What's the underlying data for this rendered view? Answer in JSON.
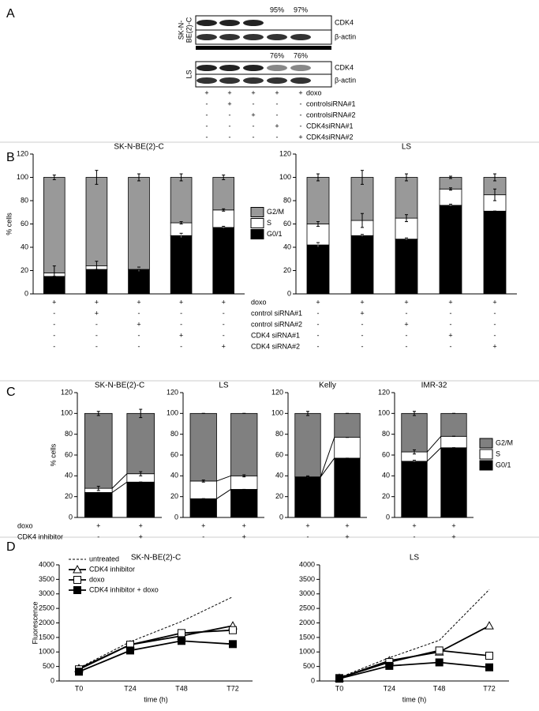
{
  "figure": {
    "panels": [
      "A",
      "B",
      "C",
      "D"
    ]
  },
  "blot": {
    "lines": [
      {
        "name_lines": [
          "SK-N-",
          "BE(2)-C"
        ],
        "knockdown": [
          "95%",
          "97%"
        ]
      },
      {
        "name_lines": [
          "LS"
        ],
        "knockdown": [
          "76%",
          "76%"
        ]
      }
    ],
    "proteins": [
      "CDK4",
      "β-actin"
    ],
    "treatments": [
      {
        "label": "doxo",
        "signs": [
          "+",
          "+",
          "+",
          "+",
          "+"
        ]
      },
      {
        "label": "controlsiRNA#1",
        "signs": [
          "-",
          "+",
          "-",
          "-",
          "-"
        ]
      },
      {
        "label": "controlsiRNA#2",
        "signs": [
          "-",
          "-",
          "+",
          "-",
          "-"
        ]
      },
      {
        "label": "CDK4siRNA#1",
        "signs": [
          "-",
          "-",
          "-",
          "+",
          "-"
        ]
      },
      {
        "label": "CDK4siRNA#2",
        "signs": [
          "-",
          "-",
          "-",
          "-",
          "+"
        ]
      }
    ]
  },
  "treatments_b": [
    {
      "label": "doxo",
      "signs": [
        "+",
        "+",
        "+",
        "+",
        "+"
      ]
    },
    {
      "label": "control siRNA#1",
      "signs": [
        "-",
        "+",
        "-",
        "-",
        "-"
      ]
    },
    {
      "label": "control siRNA#2",
      "signs": [
        "-",
        "-",
        "+",
        "-",
        "-"
      ]
    },
    {
      "label": "CDK4 siRNA#1",
      "signs": [
        "-",
        "-",
        "-",
        "+",
        "-"
      ]
    },
    {
      "label": "CDK4 siRNA#2",
      "signs": [
        "-",
        "-",
        "-",
        "-",
        "+"
      ]
    }
  ],
  "treatments_c": [
    {
      "label": "doxo",
      "signs": [
        "+",
        "+"
      ]
    },
    {
      "label": "CDK4 inhibitor",
      "signs": [
        "-",
        "+"
      ]
    }
  ],
  "chart_data": [
    {
      "type": "stacked_bar",
      "title": "SK-N-BE(2)-C",
      "y_label": "% cells",
      "ylim": [
        0,
        120
      ],
      "yticks": [
        0,
        20,
        40,
        60,
        80,
        100,
        120
      ],
      "legend": "right",
      "series": [
        {
          "name": "G0/1",
          "color": "#000000",
          "values": [
            15,
            21,
            21,
            50,
            57
          ],
          "errors": [
            0,
            0,
            2,
            2,
            1
          ]
        },
        {
          "name": "S",
          "color": "#ffffff",
          "values": [
            3,
            3,
            0,
            11,
            15
          ],
          "errors": [
            6,
            4,
            0,
            1,
            1
          ]
        },
        {
          "name": "G2/M",
          "color": "#999999",
          "values": [
            82,
            76,
            79,
            39,
            28
          ],
          "errors": [
            2,
            6,
            3,
            3,
            2
          ]
        }
      ]
    },
    {
      "type": "stacked_bar",
      "title": "LS",
      "ylim": [
        0,
        120
      ],
      "yticks": [
        0,
        20,
        40,
        60,
        80,
        100,
        120
      ],
      "series": [
        {
          "name": "G0/1",
          "color": "#000000",
          "values": [
            42,
            50,
            47,
            76,
            71
          ],
          "errors": [
            2,
            1,
            1,
            1,
            0
          ]
        },
        {
          "name": "S",
          "color": "#ffffff",
          "values": [
            18,
            13,
            18,
            14,
            14
          ],
          "errors": [
            2,
            6,
            3,
            1,
            5
          ]
        },
        {
          "name": "G2/M",
          "color": "#999999",
          "values": [
            40,
            37,
            35,
            10,
            15
          ],
          "errors": [
            3,
            6,
            3,
            1,
            3
          ]
        }
      ]
    },
    {
      "type": "stacked_bar",
      "title": "SK-N-BE(2)-C",
      "y_label": "% cells",
      "ylim": [
        0,
        120
      ],
      "yticks": [
        0,
        20,
        40,
        60,
        80,
        100,
        120
      ],
      "connect": true,
      "series": [
        {
          "name": "G0/1",
          "color": "#000000",
          "values": [
            24,
            34
          ],
          "errors": [
            0,
            0
          ]
        },
        {
          "name": "S",
          "color": "#ffffff",
          "values": [
            4,
            8
          ],
          "errors": [
            2,
            2
          ]
        },
        {
          "name": "G2/M",
          "color": "#808080",
          "values": [
            72,
            58
          ],
          "errors": [
            2,
            4
          ]
        }
      ]
    },
    {
      "type": "stacked_bar",
      "title": "LS",
      "ylim": [
        0,
        120
      ],
      "yticks": [
        0,
        20,
        40,
        60,
        80,
        100,
        120
      ],
      "connect": true,
      "series": [
        {
          "name": "G0/1",
          "color": "#000000",
          "values": [
            18,
            27
          ],
          "errors": [
            0,
            0
          ]
        },
        {
          "name": "S",
          "color": "#ffffff",
          "values": [
            17,
            13
          ],
          "errors": [
            1,
            1
          ]
        },
        {
          "name": "G2/M",
          "color": "#808080",
          "values": [
            65,
            60
          ],
          "errors": [
            0,
            0
          ]
        }
      ]
    },
    {
      "type": "stacked_bar",
      "title": "Kelly",
      "ylim": [
        0,
        120
      ],
      "yticks": [
        0,
        20,
        40,
        60,
        80,
        100,
        120
      ],
      "connect": true,
      "series": [
        {
          "name": "G0/1",
          "color": "#000000",
          "values": [
            39,
            57
          ],
          "errors": [
            1,
            0
          ]
        },
        {
          "name": "S",
          "color": "#ffffff",
          "values": [
            0,
            20
          ],
          "errors": [
            0,
            0
          ]
        },
        {
          "name": "G2/M",
          "color": "#808080",
          "values": [
            61,
            23
          ],
          "errors": [
            2,
            0
          ]
        }
      ]
    },
    {
      "type": "stacked_bar",
      "title": "IMR-32",
      "ylim": [
        0,
        120
      ],
      "yticks": [
        0,
        20,
        40,
        60,
        80,
        100,
        120
      ],
      "connect": true,
      "legend": "right",
      "series": [
        {
          "name": "G0/1",
          "color": "#000000",
          "values": [
            54,
            67
          ],
          "errors": [
            1,
            0
          ]
        },
        {
          "name": "S",
          "color": "#ffffff",
          "values": [
            9,
            11
          ],
          "errors": [
            2,
            0
          ]
        },
        {
          "name": "G2/M",
          "color": "#808080",
          "values": [
            37,
            22
          ],
          "errors": [
            2,
            0
          ]
        }
      ]
    },
    {
      "type": "line",
      "title": "SK-N-BE(2)-C",
      "y_label": "Fluorescence",
      "x_label": "time (h)",
      "legend": "upper left",
      "categories": [
        "T0",
        "T24",
        "T48",
        "T72"
      ],
      "ylim": [
        0,
        4000
      ],
      "yticks": [
        0,
        500,
        1000,
        1500,
        2000,
        2500,
        3000,
        3500,
        4000
      ],
      "series": [
        {
          "name": "untreated",
          "color": "#000000",
          "dash": true,
          "marker": "none",
          "values": [
            450,
            1350,
            2050,
            2900
          ]
        },
        {
          "name": "CDK4 inhibitor",
          "color": "#000000",
          "marker": "triangle",
          "marker_fill": "#ffffff",
          "values": [
            430,
            1250,
            1550,
            1900
          ]
        },
        {
          "name": "doxo",
          "color": "#000000",
          "marker": "square",
          "marker_fill": "#ffffff",
          "values": [
            400,
            1250,
            1650,
            1750
          ]
        },
        {
          "name": "CDK4 inhibitor + doxo",
          "color": "#000000",
          "marker": "square",
          "marker_fill": "#000000",
          "values": [
            320,
            1050,
            1380,
            1270
          ]
        }
      ]
    },
    {
      "type": "line",
      "title": "LS",
      "x_label": "time (h)",
      "categories": [
        "T0",
        "T24",
        "T48",
        "T72"
      ],
      "ylim": [
        0,
        4000
      ],
      "yticks": [
        0,
        500,
        1000,
        1500,
        2000,
        2500,
        3000,
        3500,
        4000
      ],
      "series": [
        {
          "name": "untreated",
          "color": "#000000",
          "dash": true,
          "marker": "none",
          "values": [
            120,
            800,
            1400,
            3150
          ]
        },
        {
          "name": "CDK4 inhibitor",
          "color": "#000000",
          "marker": "triangle",
          "marker_fill": "#ffffff",
          "values": [
            100,
            700,
            1000,
            1900
          ]
        },
        {
          "name": "doxo",
          "color": "#000000",
          "marker": "square",
          "marker_fill": "#ffffff",
          "values": [
            100,
            650,
            1050,
            870
          ]
        },
        {
          "name": "CDK4 inhibitor + doxo",
          "color": "#000000",
          "marker": "square",
          "marker_fill": "#000000",
          "values": [
            80,
            520,
            640,
            470
          ]
        }
      ]
    }
  ]
}
